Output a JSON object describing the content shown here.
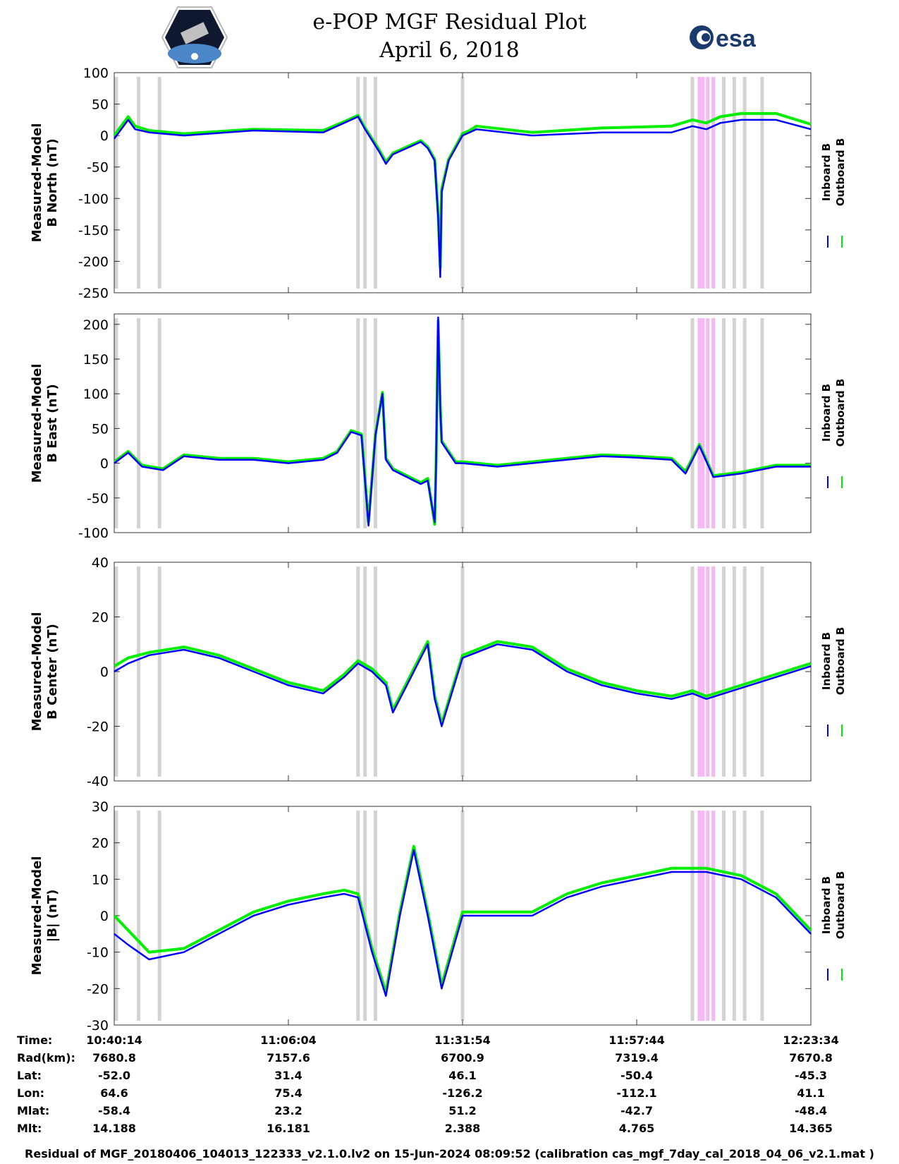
{
  "title": {
    "line1": "e-POP MGF Residual Plot",
    "line2": "April 6, 2018"
  },
  "logos": {
    "left": "cassiope-logo",
    "right": "esa-logo",
    "esa_text": "esa"
  },
  "colors": {
    "inboard": "#0000ff",
    "outboard": "#00ee00",
    "gray_band": "#d3d3d3",
    "pink_band": "#f6b8f6"
  },
  "legend": {
    "inboard": "Inboard B",
    "outboard": "Outboard B"
  },
  "chart_data": [
    {
      "type": "line",
      "ylabel": [
        "Measured-Model",
        "B North (nT)"
      ],
      "ylim": [
        -250,
        100
      ],
      "yticks": [
        100,
        50,
        0,
        -50,
        -100,
        -150,
        -200,
        -250
      ],
      "series": [
        {
          "name": "Inboard B",
          "x": [
            0,
            0.02,
            0.03,
            0.05,
            0.1,
            0.2,
            0.3,
            0.33,
            0.35,
            0.36,
            0.38,
            0.39,
            0.4,
            0.42,
            0.44,
            0.45,
            0.46,
            0.465,
            0.468,
            0.47,
            0.48,
            0.5,
            0.51,
            0.52,
            0.6,
            0.7,
            0.8,
            0.83,
            0.85,
            0.87,
            0.9,
            0.95,
            1.0
          ],
          "y": [
            -5,
            25,
            10,
            5,
            0,
            8,
            5,
            20,
            30,
            10,
            -25,
            -45,
            -30,
            -20,
            -10,
            -20,
            -40,
            -130,
            -225,
            -90,
            -40,
            0,
            5,
            10,
            0,
            5,
            5,
            15,
            10,
            20,
            25,
            25,
            10
          ]
        },
        {
          "name": "Outboard B",
          "x": [
            0,
            0.02,
            0.03,
            0.05,
            0.1,
            0.2,
            0.3,
            0.33,
            0.35,
            0.36,
            0.38,
            0.39,
            0.4,
            0.42,
            0.44,
            0.45,
            0.46,
            0.465,
            0.468,
            0.47,
            0.48,
            0.5,
            0.51,
            0.52,
            0.6,
            0.7,
            0.8,
            0.83,
            0.85,
            0.87,
            0.9,
            0.95,
            1.0
          ],
          "y": [
            0,
            30,
            15,
            8,
            3,
            10,
            8,
            22,
            32,
            12,
            -22,
            -42,
            -28,
            -18,
            -8,
            -18,
            -38,
            -125,
            -210,
            -85,
            -38,
            3,
            8,
            15,
            5,
            12,
            15,
            25,
            20,
            30,
            35,
            35,
            18
          ]
        }
      ]
    },
    {
      "type": "line",
      "ylabel": [
        "Measured-Model",
        "B East (nT)"
      ],
      "ylim": [
        -100,
        215
      ],
      "yticks": [
        200,
        150,
        100,
        50,
        0,
        -50,
        -100
      ],
      "series": [
        {
          "name": "Inboard B",
          "x": [
            0,
            0.02,
            0.04,
            0.07,
            0.1,
            0.15,
            0.2,
            0.25,
            0.3,
            0.32,
            0.34,
            0.355,
            0.365,
            0.375,
            0.385,
            0.39,
            0.4,
            0.42,
            0.44,
            0.45,
            0.46,
            0.462,
            0.465,
            0.468,
            0.47,
            0.49,
            0.5,
            0.55,
            0.6,
            0.7,
            0.75,
            0.8,
            0.82,
            0.84,
            0.86,
            0.9,
            0.95,
            1.0
          ],
          "y": [
            0,
            15,
            -5,
            -10,
            10,
            5,
            5,
            0,
            5,
            15,
            45,
            40,
            -90,
            40,
            100,
            5,
            -10,
            -20,
            -30,
            -25,
            -85,
            0,
            210,
            80,
            30,
            0,
            0,
            -5,
            0,
            10,
            8,
            5,
            -15,
            25,
            -20,
            -15,
            -5,
            -5
          ]
        },
        {
          "name": "Outboard B",
          "x": [
            0,
            0.02,
            0.04,
            0.07,
            0.1,
            0.15,
            0.2,
            0.25,
            0.3,
            0.32,
            0.34,
            0.355,
            0.365,
            0.375,
            0.385,
            0.39,
            0.4,
            0.42,
            0.44,
            0.45,
            0.46,
            0.462,
            0.465,
            0.468,
            0.47,
            0.49,
            0.5,
            0.55,
            0.6,
            0.7,
            0.75,
            0.8,
            0.82,
            0.84,
            0.86,
            0.9,
            0.95,
            1.0
          ],
          "y": [
            2,
            17,
            -3,
            -8,
            12,
            7,
            7,
            2,
            7,
            17,
            47,
            42,
            -85,
            42,
            102,
            7,
            -8,
            -18,
            -28,
            -22,
            -88,
            2,
            205,
            82,
            32,
            2,
            2,
            -3,
            2,
            12,
            10,
            7,
            -12,
            27,
            -18,
            -13,
            -3,
            -3
          ]
        }
      ]
    },
    {
      "type": "line",
      "ylabel": [
        "Measured-Model",
        "B Center (nT)"
      ],
      "ylim": [
        -40,
        40
      ],
      "yticks": [
        40,
        20,
        0,
        -20,
        -40
      ],
      "series": [
        {
          "name": "Inboard B",
          "x": [
            0,
            0.02,
            0.05,
            0.1,
            0.15,
            0.2,
            0.25,
            0.3,
            0.33,
            0.35,
            0.37,
            0.39,
            0.4,
            0.42,
            0.44,
            0.45,
            0.46,
            0.47,
            0.5,
            0.55,
            0.6,
            0.65,
            0.7,
            0.75,
            0.8,
            0.83,
            0.85,
            0.9,
            0.95,
            1.0
          ],
          "y": [
            0,
            3,
            6,
            8,
            5,
            0,
            -5,
            -8,
            -2,
            3,
            0,
            -5,
            -15,
            -5,
            5,
            10,
            -10,
            -20,
            5,
            10,
            8,
            0,
            -5,
            -8,
            -10,
            -8,
            -10,
            -6,
            -2,
            2
          ]
        },
        {
          "name": "Outboard B",
          "x": [
            0,
            0.02,
            0.05,
            0.1,
            0.15,
            0.2,
            0.25,
            0.3,
            0.33,
            0.35,
            0.37,
            0.39,
            0.4,
            0.42,
            0.44,
            0.45,
            0.46,
            0.47,
            0.5,
            0.55,
            0.6,
            0.65,
            0.7,
            0.75,
            0.8,
            0.83,
            0.85,
            0.9,
            0.95,
            1.0
          ],
          "y": [
            2,
            5,
            7,
            9,
            6,
            1,
            -4,
            -7,
            -1,
            4,
            1,
            -4,
            -14,
            -4,
            6,
            11,
            -9,
            -19,
            6,
            11,
            9,
            1,
            -4,
            -7,
            -9,
            -7,
            -9,
            -5,
            -1,
            3
          ]
        }
      ]
    },
    {
      "type": "line",
      "ylabel": [
        "Measured-Model",
        "|B| (nT)"
      ],
      "ylim": [
        -30,
        30
      ],
      "yticks": [
        30,
        20,
        10,
        0,
        -10,
        -20,
        -30
      ],
      "series": [
        {
          "name": "Inboard B",
          "x": [
            0,
            0.02,
            0.05,
            0.1,
            0.15,
            0.2,
            0.25,
            0.3,
            0.33,
            0.35,
            0.37,
            0.39,
            0.41,
            0.43,
            0.45,
            0.47,
            0.5,
            0.55,
            0.6,
            0.65,
            0.7,
            0.75,
            0.8,
            0.85,
            0.9,
            0.95,
            1.0
          ],
          "y": [
            -5,
            -8,
            -12,
            -10,
            -5,
            0,
            3,
            5,
            6,
            5,
            -10,
            -22,
            0,
            18,
            0,
            -20,
            0,
            0,
            0,
            5,
            8,
            10,
            12,
            12,
            10,
            5,
            -5
          ]
        },
        {
          "name": "Outboard B",
          "x": [
            0,
            0.02,
            0.05,
            0.1,
            0.15,
            0.2,
            0.25,
            0.3,
            0.33,
            0.35,
            0.37,
            0.39,
            0.41,
            0.43,
            0.45,
            0.47,
            0.5,
            0.55,
            0.6,
            0.65,
            0.7,
            0.75,
            0.8,
            0.85,
            0.9,
            0.95,
            1.0
          ],
          "y": [
            0,
            -4,
            -10,
            -9,
            -4,
            1,
            4,
            6,
            7,
            6,
            -9,
            -21,
            1,
            19,
            1,
            -19,
            1,
            1,
            1,
            6,
            9,
            11,
            13,
            13,
            11,
            6,
            -4
          ]
        }
      ]
    }
  ],
  "axis": {
    "xticks": [
      0,
      0.25,
      0.5,
      0.75,
      1.0
    ],
    "gray_bands": [
      0.003,
      0.035,
      0.065,
      0.35,
      0.36,
      0.375,
      0.5,
      0.83,
      0.86,
      0.875,
      0.89,
      0.905,
      0.93
    ],
    "pink_bands": [
      0.84,
      0.845,
      0.852,
      0.86
    ]
  },
  "info": {
    "labels": [
      "Time:",
      "Rad(km):",
      "Lat:",
      "Lon:",
      "Mlat:",
      "Mlt:"
    ],
    "columns": [
      [
        "10:40:14",
        "7680.8",
        "-52.0",
        "64.6",
        "-58.4",
        "14.188"
      ],
      [
        "11:06:04",
        "7157.6",
        "31.4",
        "75.4",
        "23.2",
        "16.181"
      ],
      [
        "11:31:54",
        "6700.9",
        "46.1",
        "-126.2",
        "51.2",
        "2.388"
      ],
      [
        "11:57:44",
        "7319.4",
        "-50.4",
        "-112.1",
        "-42.7",
        "4.765"
      ],
      [
        "12:23:34",
        "7670.8",
        "-45.3",
        "41.1",
        "-48.4",
        "14.365"
      ]
    ]
  },
  "footer": "Residual of MGF_20180406_104013_122333_v2.1.0.lv2 on 15-Jun-2024 08:09:52 (calibration cas_mgf_7day_cal_2018_04_06_v2.1.mat )"
}
